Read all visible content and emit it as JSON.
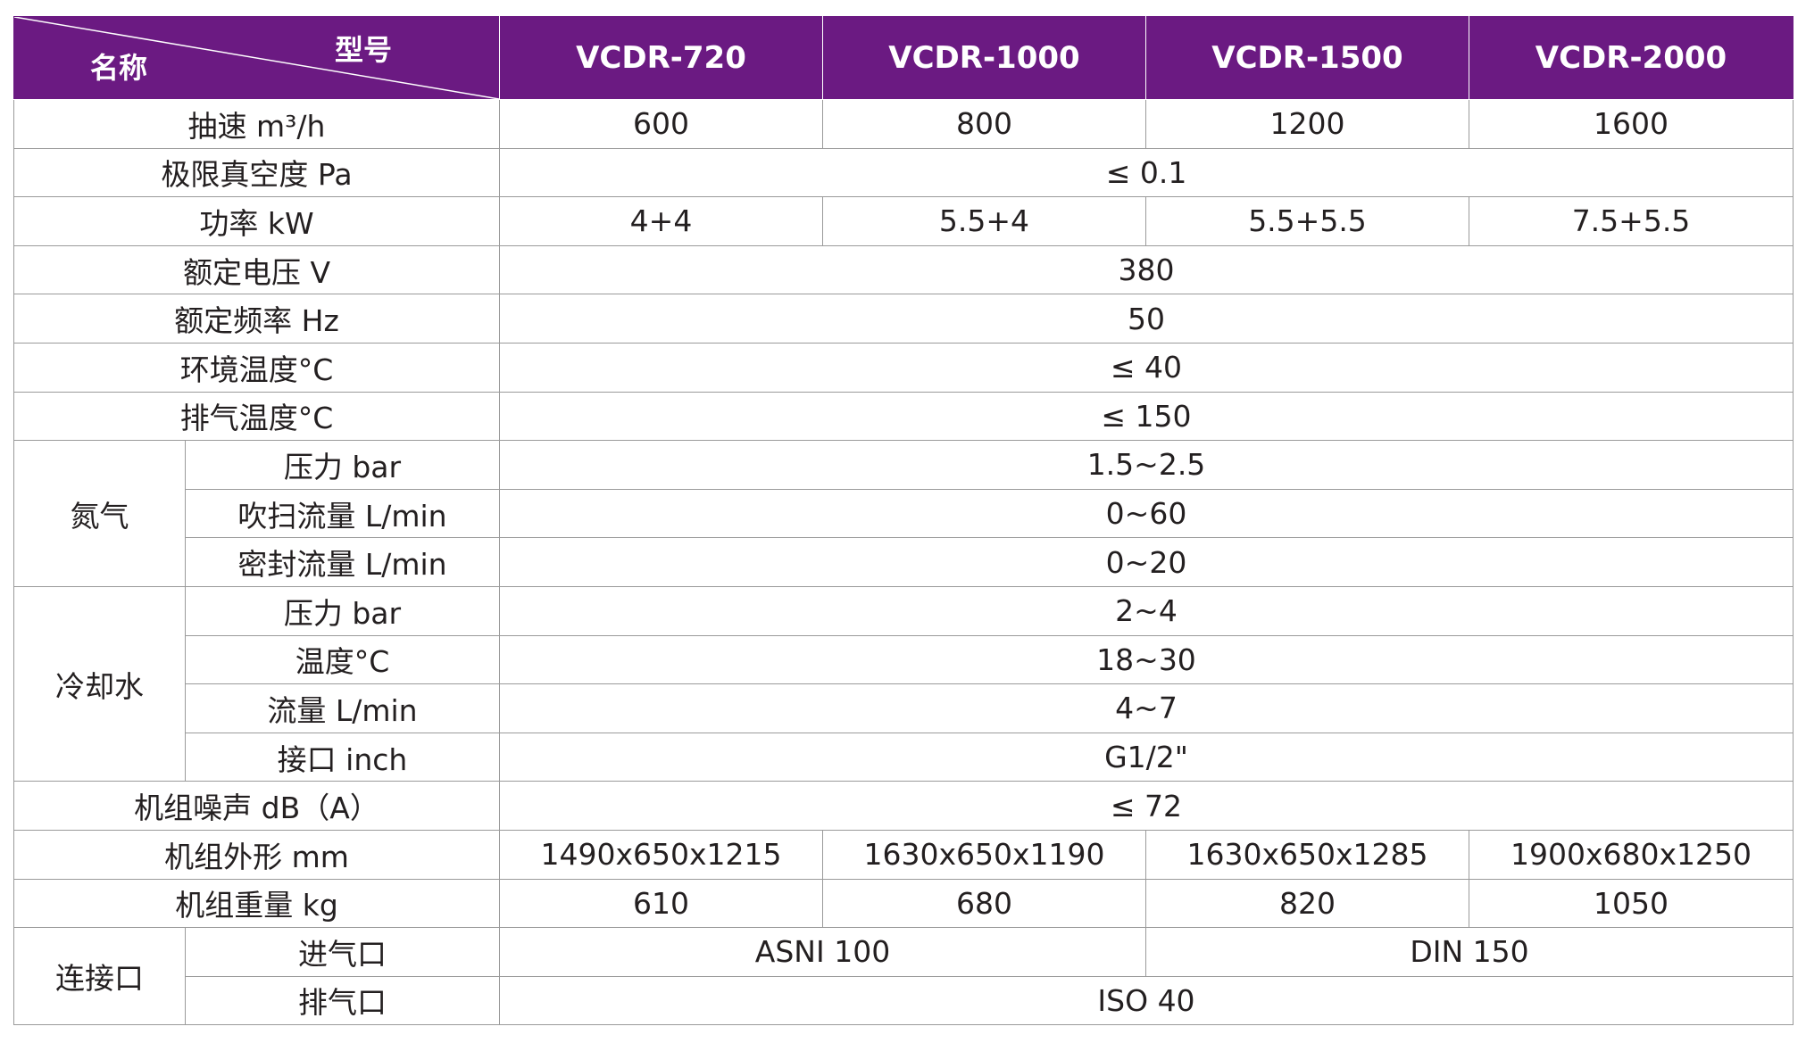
{
  "header": {
    "corner_top": "型号",
    "corner_bottom": "名称",
    "models": [
      "VCDR-720",
      "VCDR-1000",
      "VCDR-1500",
      "VCDR-2000"
    ]
  },
  "rows": {
    "pump_speed": {
      "label": "抽速 m³/h",
      "values": [
        "600",
        "800",
        "1200",
        "1600"
      ]
    },
    "ultimate_vacuum": {
      "label": "极限真空度 Pa",
      "value": "≤ 0.1"
    },
    "power": {
      "label": "功率 kW",
      "values": [
        "4+4",
        "5.5+4",
        "5.5+5.5",
        "7.5+5.5"
      ]
    },
    "rated_voltage": {
      "label": "额定电压 V",
      "value": "380"
    },
    "rated_frequency": {
      "label": "额定频率 Hz",
      "value": "50"
    },
    "ambient_temp": {
      "label": "环境温度°C",
      "value": "≤ 40"
    },
    "exhaust_temp": {
      "label": "排气温度°C",
      "value": "≤ 150"
    },
    "nitrogen": {
      "group": "氮气",
      "pressure": {
        "label": "压力 bar",
        "value": "1.5~2.5"
      },
      "purge_flow": {
        "label": "吹扫流量 L/min",
        "value": "0~60"
      },
      "seal_flow": {
        "label": "密封流量 L/min",
        "value": "0~20"
      }
    },
    "cooling_water": {
      "group": "冷却水",
      "pressure": {
        "label": "压力 bar",
        "value": "2~4"
      },
      "temperature": {
        "label": "温度°C",
        "value": "18~30"
      },
      "flow": {
        "label": "流量 L/min",
        "value": "4~7"
      },
      "connection": {
        "label": "接口 inch",
        "value": "G1/2\""
      }
    },
    "noise": {
      "label": "机组噪声 dB（A）",
      "value": "≤ 72"
    },
    "dimensions": {
      "label": "机组外形 mm",
      "values": [
        "1490x650x1215",
        "1630x650x1190",
        "1630x650x1285",
        "1900x680x1250"
      ]
    },
    "weight": {
      "label": "机组重量 kg",
      "values": [
        "610",
        "680",
        "820",
        "1050"
      ]
    },
    "connections": {
      "group": "连接口",
      "inlet": {
        "label": "进气口",
        "value_a": "ASNI 100",
        "value_b": "DIN 150"
      },
      "outlet": {
        "label": "排气口",
        "value": "ISO 40"
      }
    }
  },
  "colors": {
    "header_bg": "#6b1a82",
    "header_text": "#ffffff",
    "border": "#9a9a9a",
    "text": "#231f20"
  }
}
